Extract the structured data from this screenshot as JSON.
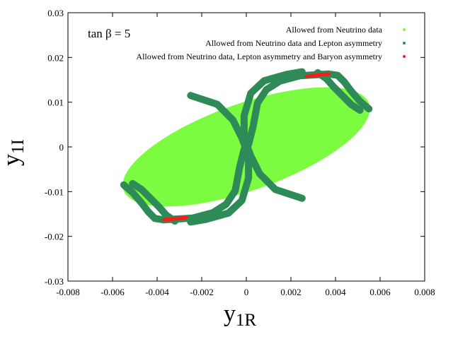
{
  "chart_data": {
    "type": "scatter",
    "title": "",
    "xlabel": "y",
    "xlabel_sub": "1R",
    "ylabel": "y",
    "ylabel_sub": "1I",
    "xlim": [
      -0.008,
      0.008
    ],
    "ylim": [
      -0.03,
      0.03
    ],
    "x_ticks": [
      -0.008,
      -0.006,
      -0.004,
      -0.002,
      0,
      0.002,
      0.004,
      0.006,
      0.008
    ],
    "x_tick_labels": [
      "-0.008",
      "-0.006",
      "-0.004",
      "-0.002",
      "0",
      "0.002",
      "0.004",
      "0.006",
      "0.008"
    ],
    "y_ticks": [
      -0.03,
      -0.02,
      -0.01,
      0,
      0.01,
      0.02,
      0.03
    ],
    "y_tick_labels": [
      "-0.03",
      "-0.02",
      "-0.01",
      "0",
      "0.01",
      "0.02",
      "0.03"
    ],
    "grid": false,
    "legend_position": "top-right",
    "annotation": "tan β = 5",
    "series": [
      {
        "name": "Allowed from Neutrino data",
        "color": "#7cfc40",
        "region": {
          "shape": "ellipse",
          "center": [
            0.0,
            0.0
          ],
          "extreme_points": [
            [
              -0.0055,
              -0.0098
            ],
            [
              0.0055,
              0.0098
            ],
            [
              0.0037,
              0.0168
            ],
            [
              -0.0037,
              -0.0168
            ],
            [
              -0.0056,
              -0.008
            ],
            [
              0.0056,
              0.008
            ]
          ]
        }
      },
      {
        "name": "Allowed from Neutrino data and Lepton asymmetry",
        "color": "#2e8b57",
        "bands": [
          [
            [
              0.0025,
              0.0168
            ],
            [
              0.0018,
              0.0162
            ],
            [
              0.0008,
              0.0148
            ],
            [
              0.0002,
              0.012
            ],
            [
              -0.0001,
              0.007
            ],
            [
              -0.0001,
              0.002
            ],
            [
              0.0002,
              -0.002
            ],
            [
              0.0006,
              -0.006
            ],
            [
              0.0013,
              -0.0095
            ],
            [
              0.0025,
              -0.0115
            ]
          ],
          [
            [
              -0.0025,
              -0.0168
            ],
            [
              -0.0018,
              -0.0162
            ],
            [
              -0.0008,
              -0.0148
            ],
            [
              -0.0002,
              -0.012
            ],
            [
              0.0001,
              -0.007
            ],
            [
              0.0001,
              -0.002
            ],
            [
              -0.0002,
              0.002
            ],
            [
              -0.0006,
              0.006
            ],
            [
              -0.0013,
              0.0095
            ],
            [
              -0.0025,
              0.0115
            ]
          ],
          [
            [
              -0.0037,
              -0.0163
            ],
            [
              -0.0024,
              -0.0159
            ],
            [
              -0.0015,
              -0.0147
            ],
            [
              -0.0009,
              -0.0128
            ],
            [
              -0.0005,
              -0.0098
            ],
            [
              -0.0003,
              -0.0045
            ],
            [
              -0.0001,
              -0.0005
            ]
          ],
          [
            [
              0.0037,
              0.0163
            ],
            [
              0.0024,
              0.0159
            ],
            [
              0.0015,
              0.0147
            ],
            [
              0.0009,
              0.0128
            ],
            [
              0.0005,
              0.0098
            ],
            [
              0.0003,
              0.0045
            ],
            [
              0.0001,
              0.0005
            ]
          ],
          [
            [
              0.0037,
              0.0163
            ],
            [
              0.0041,
              0.016
            ],
            [
              0.0044,
              0.0145
            ],
            [
              0.0047,
              0.0125
            ],
            [
              0.0051,
              0.0102
            ],
            [
              0.0055,
              0.0085
            ]
          ],
          [
            [
              0.0032,
              0.0166
            ],
            [
              0.0036,
              0.0152
            ],
            [
              0.0039,
              0.0135
            ],
            [
              0.0043,
              0.0115
            ],
            [
              0.0047,
              0.0095
            ],
            [
              0.0051,
              0.0082
            ]
          ],
          [
            [
              -0.0037,
              -0.0163
            ],
            [
              -0.0041,
              -0.016
            ],
            [
              -0.0044,
              -0.0145
            ],
            [
              -0.0047,
              -0.0125
            ],
            [
              -0.0051,
              -0.0102
            ],
            [
              -0.0055,
              -0.0085
            ]
          ],
          [
            [
              -0.0032,
              -0.0166
            ],
            [
              -0.0036,
              -0.0152
            ],
            [
              -0.0039,
              -0.0135
            ],
            [
              -0.0043,
              -0.0115
            ],
            [
              -0.0047,
              -0.0095
            ],
            [
              -0.0051,
              -0.0082
            ]
          ]
        ]
      },
      {
        "name": "Allowed from Neutrino data, Lepton asymmetry and Baryon asymmetry",
        "color": "#ff1a1a",
        "segments": [
          [
            [
              0.0027,
              0.0158
            ],
            [
              0.0037,
              0.0163
            ]
          ],
          [
            [
              -0.0037,
              -0.0163
            ],
            [
              -0.0027,
              -0.0158
            ]
          ]
        ]
      }
    ]
  }
}
